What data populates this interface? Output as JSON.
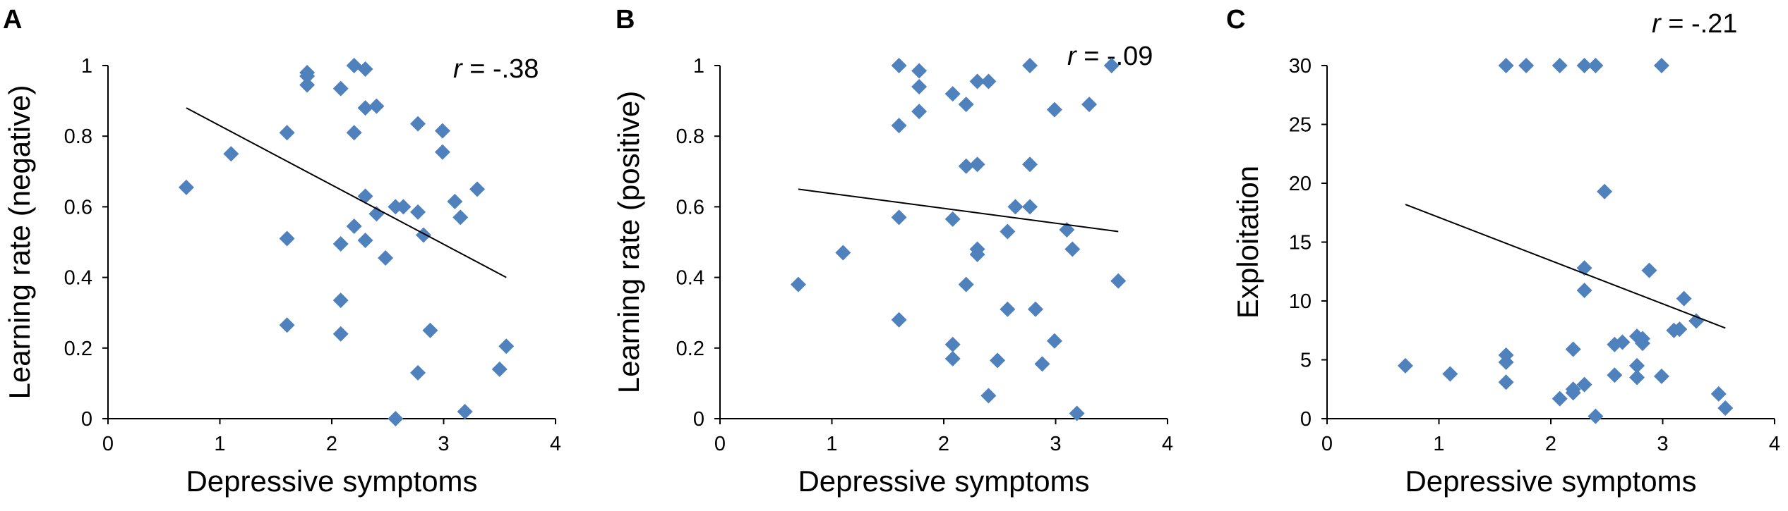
{
  "chart_data": [
    {
      "type": "scatter",
      "panel_label": "A",
      "annotation": {
        "symbol": "r",
        "value": " = -.38"
      },
      "xlabel": "Depressive symptoms",
      "ylabel": "Learning rate (negative)",
      "xlim": [
        0,
        4
      ],
      "ylim": [
        0,
        1
      ],
      "xticks": [
        0,
        1,
        2,
        3,
        4
      ],
      "xtick_labels": [
        "0",
        "1",
        "2",
        "3",
        "4"
      ],
      "yticks": [
        0,
        0.2,
        0.4,
        0.6,
        0.8,
        1
      ],
      "ytick_labels": [
        "0",
        "0.2",
        "0.4",
        "0.6",
        "0.8",
        "1"
      ],
      "marker_color": "#4f81bd",
      "trendline": {
        "x": [
          0.7,
          3.56
        ],
        "y": [
          0.88,
          0.4
        ]
      },
      "points": [
        [
          0.7,
          0.655
        ],
        [
          1.1,
          0.75
        ],
        [
          1.6,
          0.81
        ],
        [
          1.6,
          0.51
        ],
        [
          1.6,
          0.265
        ],
        [
          1.78,
          0.98
        ],
        [
          1.78,
          0.97
        ],
        [
          1.78,
          0.945
        ],
        [
          2.08,
          0.935
        ],
        [
          2.08,
          0.495
        ],
        [
          2.08,
          0.335
        ],
        [
          2.08,
          0.24
        ],
        [
          2.2,
          1.0
        ],
        [
          2.2,
          0.81
        ],
        [
          2.2,
          0.545
        ],
        [
          2.3,
          0.99
        ],
        [
          2.3,
          0.88
        ],
        [
          2.3,
          0.63
        ],
        [
          2.3,
          0.505
        ],
        [
          2.4,
          0.885
        ],
        [
          2.4,
          0.58
        ],
        [
          2.48,
          0.455
        ],
        [
          2.57,
          0.6
        ],
        [
          2.57,
          0.0
        ],
        [
          2.64,
          0.6
        ],
        [
          2.77,
          0.835
        ],
        [
          2.77,
          0.585
        ],
        [
          2.77,
          0.13
        ],
        [
          2.82,
          0.52
        ],
        [
          2.88,
          0.25
        ],
        [
          2.99,
          0.815
        ],
        [
          2.99,
          0.755
        ],
        [
          3.1,
          0.615
        ],
        [
          3.15,
          0.57
        ],
        [
          3.19,
          0.02
        ],
        [
          3.3,
          0.65
        ],
        [
          3.5,
          0.14
        ],
        [
          3.56,
          0.205
        ]
      ]
    },
    {
      "type": "scatter",
      "panel_label": "B",
      "annotation": {
        "symbol": "r",
        "value": " = -.09"
      },
      "xlabel": "Depressive symptoms",
      "ylabel": "Learning rate (positive)",
      "xlim": [
        0,
        4
      ],
      "ylim": [
        0,
        1
      ],
      "xticks": [
        0,
        1,
        2,
        3,
        4
      ],
      "xtick_labels": [
        "0",
        "1",
        "2",
        "3",
        "4"
      ],
      "yticks": [
        0,
        0.2,
        0.4,
        0.6,
        0.8,
        1
      ],
      "ytick_labels": [
        "0",
        "0.2",
        "0.4",
        "0.6",
        "0.8",
        "1"
      ],
      "marker_color": "#4f81bd",
      "trendline": {
        "x": [
          0.7,
          3.56
        ],
        "y": [
          0.65,
          0.53
        ]
      },
      "points": [
        [
          0.7,
          0.38
        ],
        [
          1.1,
          0.47
        ],
        [
          1.6,
          1.0
        ],
        [
          1.6,
          0.83
        ],
        [
          1.6,
          0.57
        ],
        [
          1.6,
          0.28
        ],
        [
          1.78,
          0.985
        ],
        [
          1.78,
          0.94
        ],
        [
          1.78,
          0.87
        ],
        [
          2.08,
          0.92
        ],
        [
          2.08,
          0.565
        ],
        [
          2.08,
          0.21
        ],
        [
          2.08,
          0.17
        ],
        [
          2.2,
          0.89
        ],
        [
          2.2,
          0.715
        ],
        [
          2.2,
          0.38
        ],
        [
          2.3,
          0.955
        ],
        [
          2.3,
          0.72
        ],
        [
          2.3,
          0.48
        ],
        [
          2.3,
          0.465
        ],
        [
          2.4,
          0.955
        ],
        [
          2.4,
          0.065
        ],
        [
          2.48,
          0.165
        ],
        [
          2.57,
          0.53
        ],
        [
          2.57,
          0.31
        ],
        [
          2.64,
          0.6
        ],
        [
          2.77,
          1.0
        ],
        [
          2.77,
          0.72
        ],
        [
          2.77,
          0.6
        ],
        [
          2.82,
          0.31
        ],
        [
          2.88,
          0.155
        ],
        [
          2.99,
          0.875
        ],
        [
          2.99,
          0.22
        ],
        [
          3.1,
          0.535
        ],
        [
          3.15,
          0.48
        ],
        [
          3.19,
          0.015
        ],
        [
          3.3,
          0.89
        ],
        [
          3.5,
          1.0
        ],
        [
          3.56,
          0.39
        ]
      ]
    },
    {
      "type": "scatter",
      "panel_label": "C",
      "annotation": {
        "symbol": "r",
        "value": " = -.21"
      },
      "xlabel": "Depressive symptoms",
      "ylabel": "Exploitation",
      "xlim": [
        0,
        4
      ],
      "ylim": [
        0,
        30
      ],
      "xticks": [
        0,
        1,
        2,
        3,
        4
      ],
      "xtick_labels": [
        "0",
        "1",
        "2",
        "3",
        "4"
      ],
      "yticks": [
        0,
        5,
        10,
        15,
        20,
        25,
        30
      ],
      "ytick_labels": [
        "0",
        "5",
        "10",
        "15",
        "20",
        "25",
        "30"
      ],
      "marker_color": "#4f81bd",
      "trendline": {
        "x": [
          0.7,
          3.56
        ],
        "y": [
          18.2,
          7.7
        ]
      },
      "points": [
        [
          0.7,
          4.5
        ],
        [
          1.1,
          3.8
        ],
        [
          1.6,
          30
        ],
        [
          1.6,
          5.4
        ],
        [
          1.6,
          4.8
        ],
        [
          1.6,
          3.1
        ],
        [
          1.78,
          30
        ],
        [
          2.08,
          30
        ],
        [
          2.08,
          1.7
        ],
        [
          2.2,
          5.9
        ],
        [
          2.2,
          2.5
        ],
        [
          2.2,
          2.2
        ],
        [
          2.3,
          30
        ],
        [
          2.3,
          12.8
        ],
        [
          2.3,
          10.9
        ],
        [
          2.3,
          2.9
        ],
        [
          2.4,
          30
        ],
        [
          2.4,
          0.2
        ],
        [
          2.48,
          19.3
        ],
        [
          2.57,
          6.3
        ],
        [
          2.57,
          3.7
        ],
        [
          2.64,
          6.5
        ],
        [
          2.77,
          7.0
        ],
        [
          2.77,
          4.5
        ],
        [
          2.77,
          3.5
        ],
        [
          2.82,
          6.8
        ],
        [
          2.82,
          6.4
        ],
        [
          2.88,
          12.6
        ],
        [
          2.99,
          30
        ],
        [
          2.99,
          3.6
        ],
        [
          3.1,
          7.5
        ],
        [
          3.15,
          7.6
        ],
        [
          3.19,
          10.2
        ],
        [
          3.3,
          8.3
        ],
        [
          3.5,
          2.1
        ],
        [
          3.56,
          0.9
        ]
      ]
    }
  ]
}
